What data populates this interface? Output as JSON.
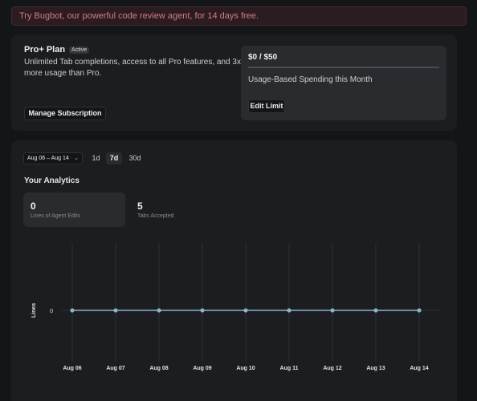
{
  "banner": {
    "text": "Try Bugbot, our powerful code review agent, for 14 days free."
  },
  "plan": {
    "title": "Pro+ Plan",
    "badge": "Active",
    "description": "Unlimited Tab completions, access to all Pro features, and 3x more usage than Pro.",
    "manage_label": "Manage Subscription"
  },
  "spending": {
    "amount": "$0 / $50",
    "progress": 0,
    "label": "Usage-Based Spending this Month",
    "edit_label": "Edit Limit"
  },
  "analytics": {
    "date_range": "Aug 06 – Aug 14",
    "ranges": {
      "r1": "1d",
      "r7": "7d",
      "r30": "30d"
    },
    "selected_range": "7d",
    "title": "Your Analytics",
    "stats": [
      {
        "value": "0",
        "label": "Lines of Agent Edits"
      },
      {
        "value": "5",
        "label": "Tabs Accepted"
      }
    ]
  },
  "colors": {
    "line": "#8ab4c8",
    "accent_banner": "#d57a86"
  },
  "chart_data": {
    "type": "line",
    "ylabel": "Lines",
    "xlabel": "",
    "categories": [
      "Aug 06",
      "Aug 07",
      "Aug 08",
      "Aug 09",
      "Aug 10",
      "Aug 11",
      "Aug 12",
      "Aug 13",
      "Aug 14"
    ],
    "series": [
      {
        "values": [
          0,
          0,
          0,
          0,
          0,
          0,
          0,
          0,
          0
        ]
      }
    ],
    "y_ticks": [
      "0"
    ],
    "grid": true
  }
}
